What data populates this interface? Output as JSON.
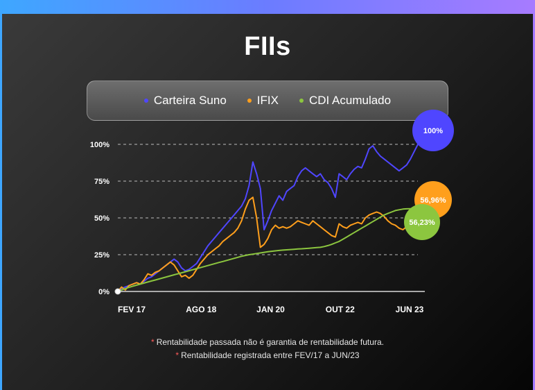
{
  "title": "FIIs",
  "legend": [
    {
      "label": "Carteira Suno",
      "color": "#4f46ff"
    },
    {
      "label": "IFIX",
      "color": "#ff9f1c"
    },
    {
      "label": "CDI Acumulado",
      "color": "#8cc63f"
    }
  ],
  "notes": [
    "Rentabilidade passada não é garantia de rentabilidade futura.",
    "Rentabilidade registrada entre FEV/17 a JUN/23"
  ],
  "chart_data": {
    "type": "line",
    "title": "FIIs",
    "xlabel": "",
    "ylabel": "",
    "x_ticks": [
      "FEV 17",
      "AGO 18",
      "JAN 20",
      "OUT 22",
      "JUN 23"
    ],
    "y_ticks": [
      "0%",
      "25%",
      "50%",
      "75%",
      "100%"
    ],
    "ylim": [
      0,
      100
    ],
    "grid": "horizontal dashed",
    "legend_position": "top",
    "series": [
      {
        "name": "Carteira Suno",
        "color": "#4f46ff",
        "end_label": "100%",
        "values": [
          0,
          2,
          3,
          4,
          5,
          6,
          5,
          7,
          9,
          10,
          12,
          14,
          16,
          18,
          20,
          22,
          20,
          16,
          14,
          15,
          17,
          19,
          23,
          27,
          31,
          34,
          37,
          40,
          43,
          46,
          49,
          52,
          55,
          58,
          63,
          72,
          88,
          80,
          70,
          42,
          48,
          55,
          60,
          65,
          62,
          68,
          70,
          72,
          78,
          82,
          84,
          82,
          80,
          78,
          80,
          76,
          74,
          70,
          64,
          80,
          78,
          76,
          80,
          83,
          85,
          84,
          90,
          97,
          99,
          95,
          92,
          90,
          88,
          86,
          84,
          82,
          84,
          86,
          90,
          95,
          100
        ]
      },
      {
        "name": "IFIX",
        "color": "#ff9f1c",
        "end_label": "56,96%",
        "values": [
          0,
          3,
          1,
          4,
          5,
          6,
          5,
          8,
          12,
          11,
          13,
          14,
          16,
          18,
          20,
          18,
          14,
          10,
          11,
          9,
          11,
          15,
          19,
          22,
          25,
          27,
          29,
          31,
          34,
          36,
          38,
          40,
          43,
          48,
          56,
          62,
          64,
          50,
          30,
          32,
          36,
          42,
          45,
          43,
          44,
          43,
          44,
          46,
          48,
          47,
          46,
          45,
          48,
          46,
          44,
          42,
          40,
          38,
          37,
          46,
          44,
          43,
          45,
          46,
          47,
          46,
          50,
          52,
          53,
          54,
          53,
          51,
          48,
          46,
          45,
          43,
          42,
          44,
          46,
          50,
          57
        ]
      },
      {
        "name": "CDI Acumulado",
        "color": "#8cc63f",
        "end_label": "56,23%",
        "values": [
          0,
          1,
          2,
          2.8,
          3.6,
          4.3,
          5.0,
          5.7,
          6.4,
          7.1,
          7.8,
          8.5,
          9.2,
          9.9,
          10.6,
          11.3,
          12.0,
          12.7,
          13.4,
          14.1,
          14.8,
          15.5,
          16.2,
          16.9,
          17.6,
          18.3,
          19.0,
          19.7,
          20.4,
          21.1,
          21.8,
          22.5,
          23.2,
          23.9,
          24.5,
          25.0,
          25.4,
          25.8,
          26.2,
          26.6,
          27.0,
          27.3,
          27.6,
          27.9,
          28.1,
          28.3,
          28.5,
          28.7,
          28.9,
          29.0,
          29.2,
          29.4,
          29.6,
          29.8,
          30.0,
          30.5,
          31.2,
          32.0,
          33.0,
          34.0,
          35.5,
          37.0,
          38.5,
          40.0,
          41.5,
          43.0,
          44.5,
          46.0,
          47.5,
          49.0,
          50.5,
          52.0,
          53.0,
          54.0,
          55.0,
          55.5,
          56.0,
          56.2,
          56.23,
          56.23,
          56.23
        ]
      }
    ]
  }
}
